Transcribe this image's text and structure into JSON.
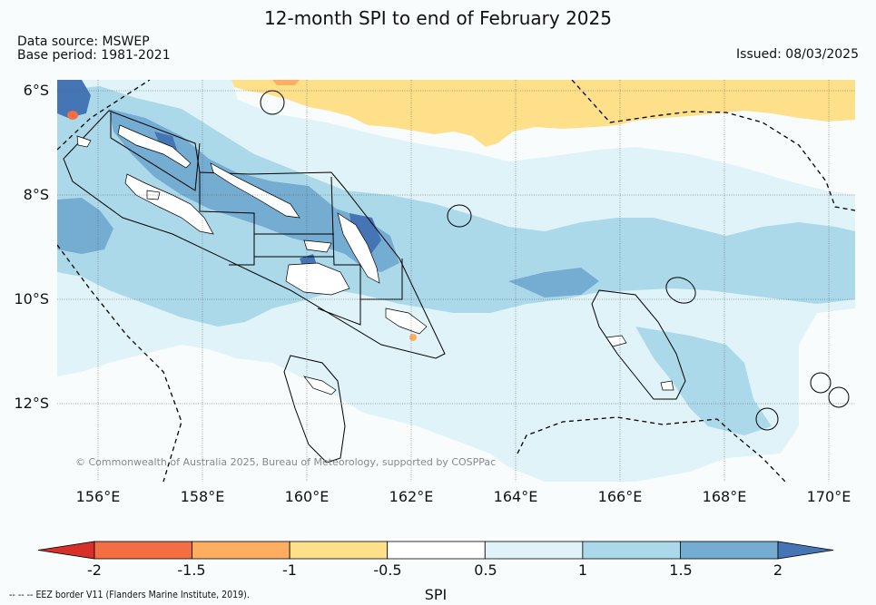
{
  "title": "12-month SPI to end of February 2025",
  "data_source": "Data source: MSWEP",
  "base_period": "Base period: 1981-2021",
  "issued": "Issued: 08/03/2025",
  "copyright": "© Commonwealth of Australia 2025, Bureau of Meteorology, supported by COSPPac",
  "footnote_symbol": "-- -- --",
  "footnote_text": "EEZ border V11 (Flanders Marine Institute, 2019).",
  "lat_labels": [
    "6°S",
    "8°S",
    "10°S",
    "12°S"
  ],
  "lon_labels": [
    "156°E",
    "158°E",
    "160°E",
    "162°E",
    "164°E",
    "166°E",
    "168°E",
    "170°E"
  ],
  "colorbar": {
    "label": "SPI",
    "tick_labels": [
      "-2",
      "-1.5",
      "-1",
      "-0.5",
      "0.5",
      "1",
      "1.5",
      "2"
    ],
    "colors": {
      "below_-2": "#d7302a",
      "-2_-1.5": "#f46d43",
      "-1.5_-1": "#fdae61",
      "-1_-0.5": "#fee08b",
      "-0.5_0.5": "#ffffff",
      "0.5_1": "#e0f3f8",
      "1_1.5": "#abd9e9",
      "1.5_2": "#74add1",
      "above_2": "#4575b4"
    }
  },
  "colors": {
    "background": "#f8fcfd",
    "map_background": "#f8fcfd"
  }
}
